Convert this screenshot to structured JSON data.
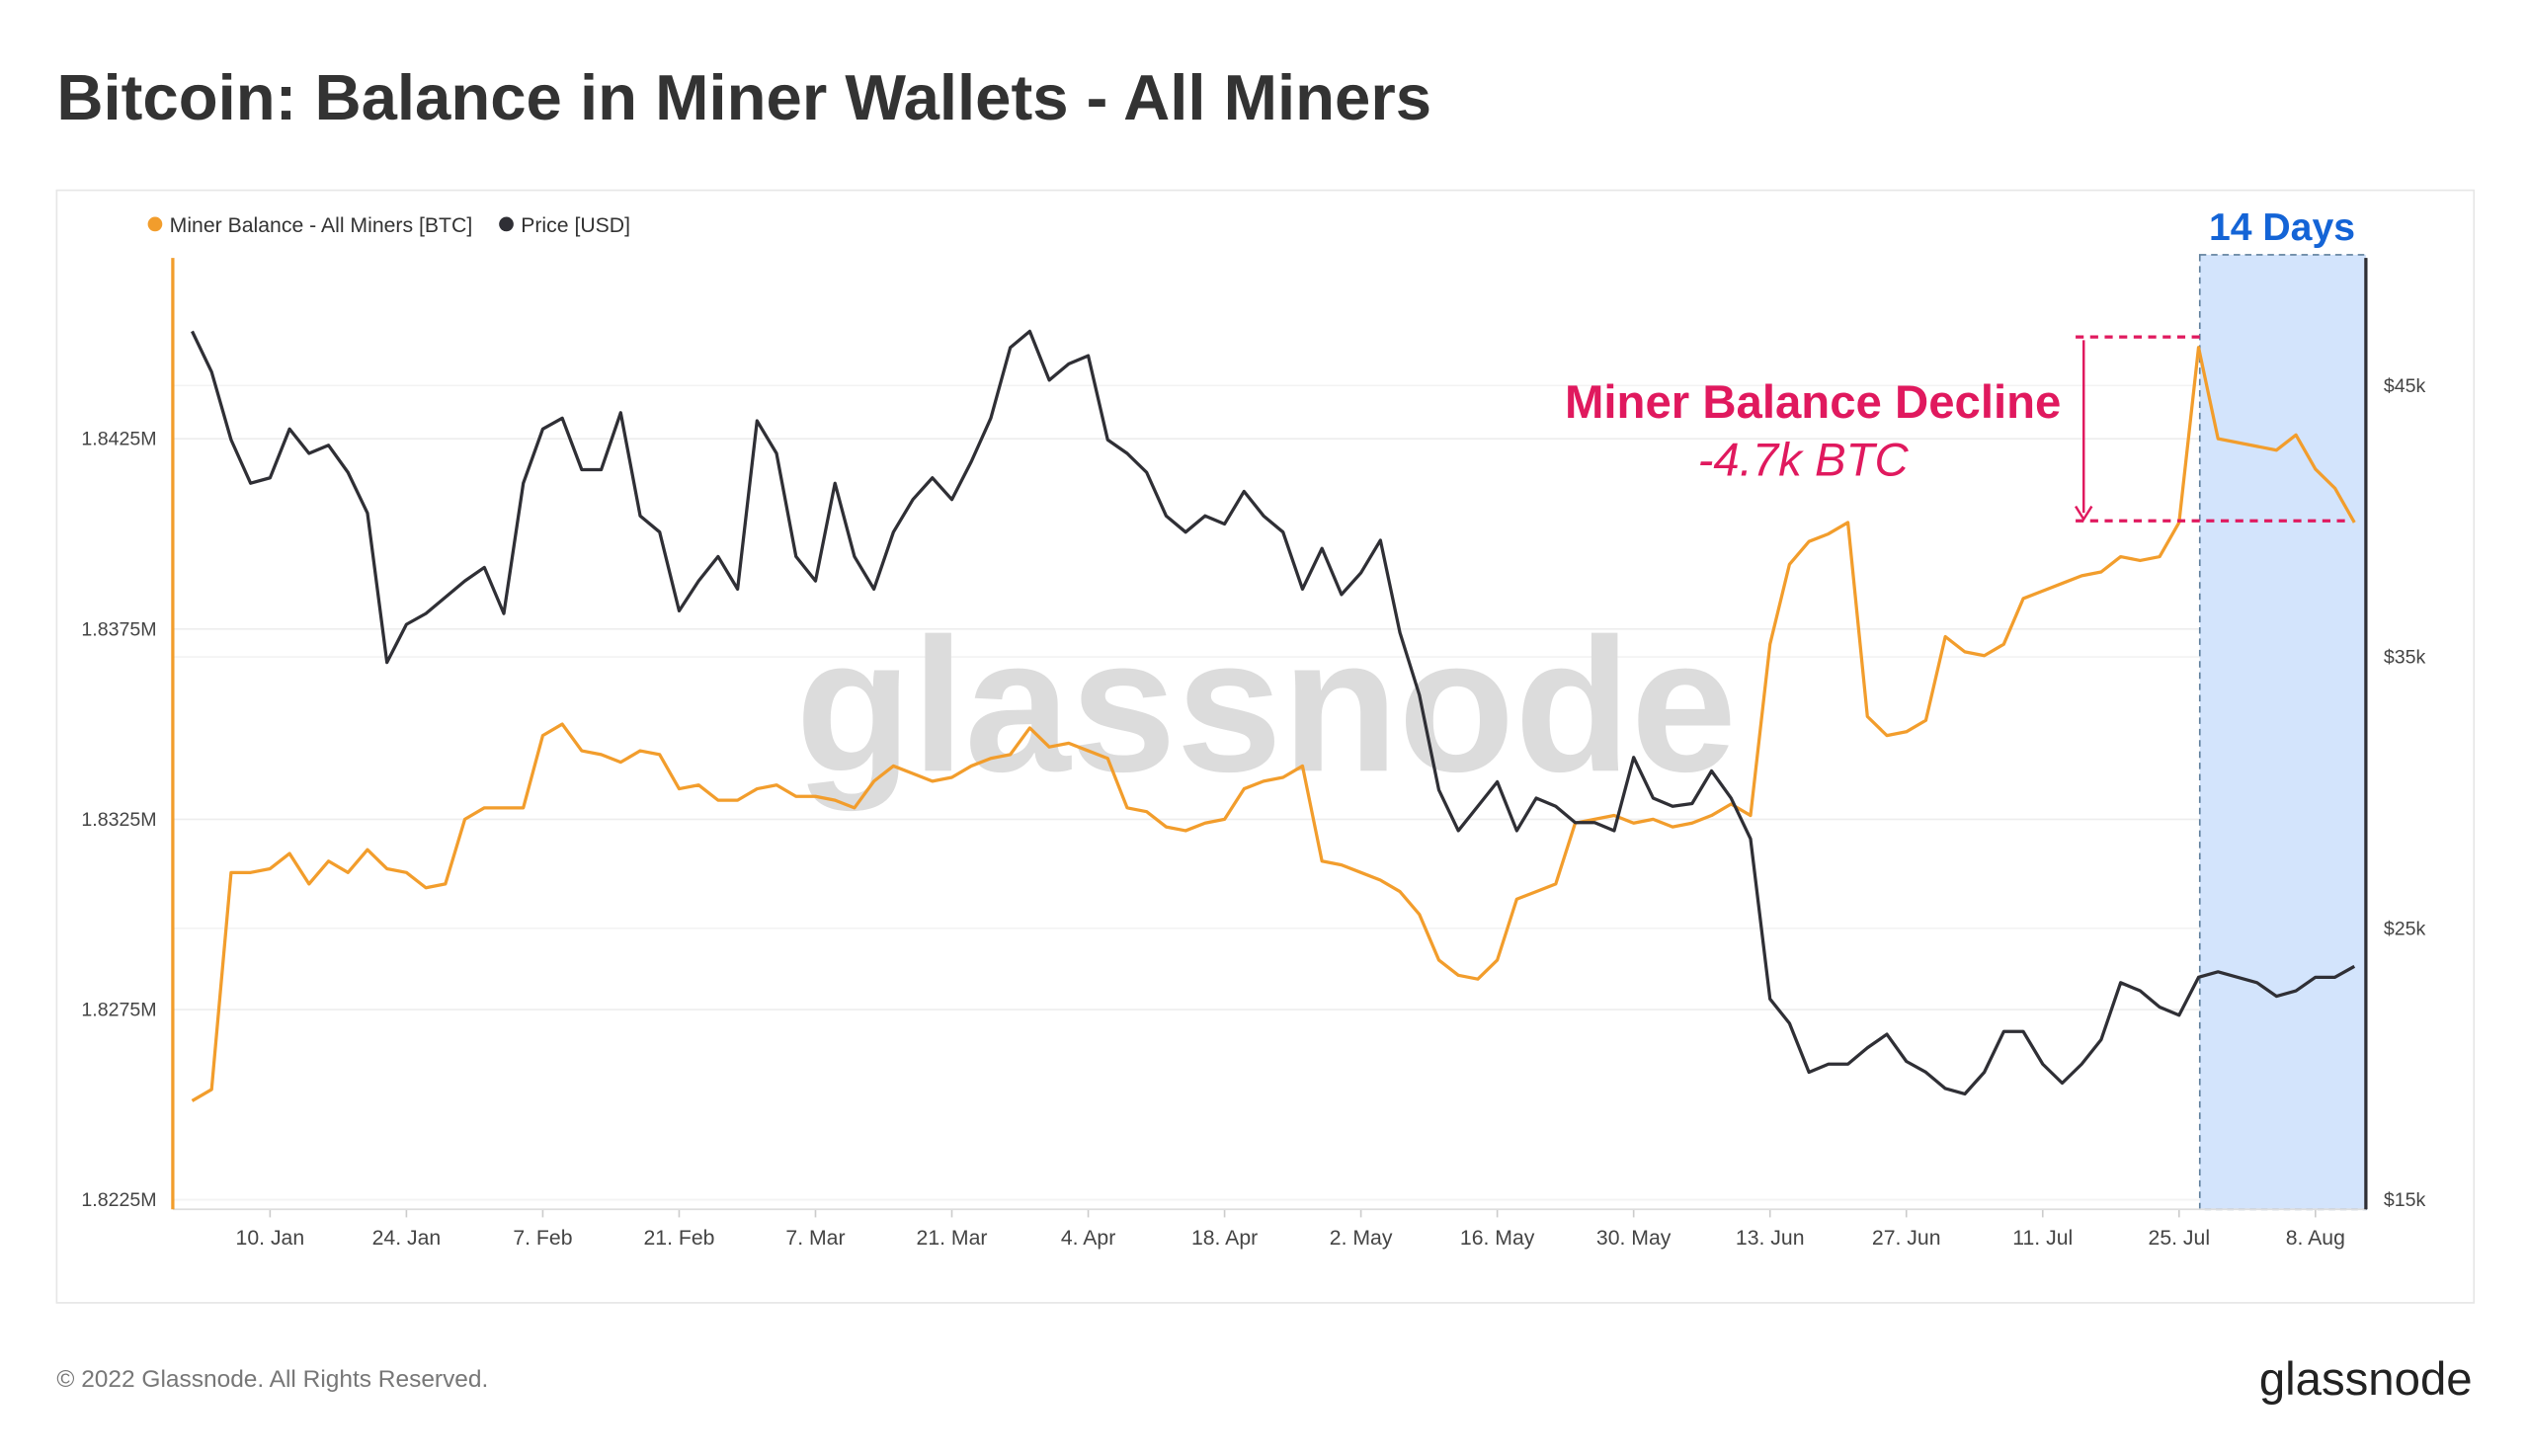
{
  "chart_data": {
    "type": "line",
    "title": "Bitcoin: Balance in Miner Wallets - All Miners",
    "categories": [
      null,
      null,
      null,
      null,
      "10. Jan",
      null,
      null,
      null,
      null,
      null,
      null,
      "24. Jan",
      null,
      null,
      null,
      null,
      null,
      null,
      "7. Feb",
      null,
      null,
      null,
      null,
      null,
      null,
      "21. Feb",
      null,
      null,
      null,
      null,
      null,
      null,
      "7. Mar",
      null,
      null,
      null,
      null,
      null,
      null,
      "21. Mar",
      null,
      null,
      null,
      null,
      null,
      null,
      "4. Apr",
      null,
      null,
      null,
      null,
      null,
      null,
      "18. Apr",
      null,
      null,
      null,
      null,
      null,
      null,
      "2. May",
      null,
      null,
      null,
      null,
      null,
      null,
      "16. May",
      null,
      null,
      null,
      null,
      null,
      null,
      "30. May",
      null,
      null,
      null,
      null,
      null,
      null,
      "13. Jun",
      null,
      null,
      null,
      null,
      null,
      null,
      "27. Jun",
      null,
      null,
      null,
      null,
      null,
      null,
      "11. Jul",
      null,
      null,
      null,
      null,
      null,
      null,
      "25. Jul",
      null,
      null,
      null,
      null,
      null,
      null,
      "8. Aug",
      null,
      null
    ],
    "series": [
      {
        "name": "Miner Balance - All Miners [BTC]",
        "color": "#f29d2c",
        "axis": "y",
        "values": [
          1825100,
          1825400,
          1831100,
          1831100,
          1831200,
          1831600,
          1830800,
          1831400,
          1831100,
          1831700,
          1831200,
          1831100,
          1830700,
          1830800,
          1832500,
          1832800,
          1832800,
          1832800,
          1834700,
          1835000,
          1834300,
          1834200,
          1834000,
          1834300,
          1834200,
          1833300,
          1833400,
          1833000,
          1833000,
          1833300,
          1833400,
          1833100,
          1833100,
          1833000,
          1832800,
          1833500,
          1833900,
          1833700,
          1833500,
          1833600,
          1833900,
          1834100,
          1834200,
          1834900,
          1834400,
          1834500,
          1834300,
          1834100,
          1832800,
          1832700,
          1832300,
          1832200,
          1832400,
          1832500,
          1833300,
          1833500,
          1833600,
          1833900,
          1831400,
          1831300,
          1831100,
          1830900,
          1830600,
          1830000,
          1828800,
          1828400,
          1828300,
          1828800,
          1830400,
          1830600,
          1830800,
          1832400,
          1832500,
          1832600,
          1832400,
          1832500,
          1832300,
          1832400,
          1832600,
          1832900,
          1832600,
          1837100,
          1839200,
          1839800,
          1840000,
          1840300,
          1835200,
          1834700,
          1834800,
          1835100,
          1837300,
          1836900,
          1836800,
          1837100,
          1838300,
          1838500,
          1838700,
          1838900,
          1839000,
          1839400,
          1839300,
          1839400,
          1840300,
          1844900,
          1842500,
          1842400,
          1842300,
          1842200,
          1842600,
          1841700,
          1841200,
          1840300
        ]
      },
      {
        "name": "Price [USD]",
        "color": "#2f2f35",
        "axis": "y2",
        "values": [
          47000,
          45500,
          43000,
          41400,
          41600,
          43400,
          42500,
          42800,
          41800,
          40300,
          34800,
          36200,
          36600,
          37200,
          37800,
          38300,
          36600,
          41400,
          43400,
          43800,
          41900,
          41900,
          44000,
          40200,
          39600,
          36700,
          37800,
          38700,
          37500,
          43700,
          42500,
          38700,
          37800,
          41400,
          38700,
          37500,
          39600,
          40800,
          41600,
          40800,
          42200,
          43800,
          46400,
          47000,
          45200,
          45800,
          46100,
          43000,
          42500,
          41800,
          40200,
          39600,
          40200,
          39900,
          41100,
          40200,
          39600,
          37500,
          39000,
          37300,
          38100,
          39300,
          35900,
          33600,
          30100,
          28600,
          29500,
          30400,
          28600,
          29800,
          29500,
          28900,
          28900,
          28600,
          31300,
          29800,
          29500,
          29600,
          30800,
          29800,
          28300,
          22400,
          21500,
          19700,
          20000,
          20000,
          20600,
          21100,
          20100,
          19700,
          19100,
          18900,
          19700,
          21200,
          21200,
          20000,
          19300,
          20000,
          20900,
          23000,
          22700,
          22100,
          21800,
          23200,
          23400,
          23200,
          23000,
          22500,
          22700,
          23200,
          23200,
          23600
        ]
      }
    ],
    "ylim": [
      1822250,
      1847250
    ],
    "yticks": [
      {
        "value": 1822500,
        "label": "1.8225M"
      },
      {
        "value": 1827500,
        "label": "1.8275M"
      },
      {
        "value": 1832500,
        "label": "1.8325M"
      },
      {
        "value": 1837500,
        "label": "1.8375M"
      },
      {
        "value": 1842500,
        "label": "1.8425M"
      }
    ],
    "y2lim": [
      14650,
      49700
    ],
    "y2ticks": [
      {
        "value": 15000,
        "label": "$15k"
      },
      {
        "value": 25000,
        "label": "$25k"
      },
      {
        "value": 35000,
        "label": "$35k"
      },
      {
        "value": 45000,
        "label": "$45k"
      }
    ],
    "grid": true,
    "legend": "top-left",
    "annotations": {
      "highlight": "14 Days",
      "decline_title": "Miner Balance Decline",
      "decline_amount": "-4.7k BTC"
    },
    "watermark": "glassnode",
    "footer": "© 2022 Glassnode. All Rights Reserved.",
    "logo": "glassnode"
  }
}
